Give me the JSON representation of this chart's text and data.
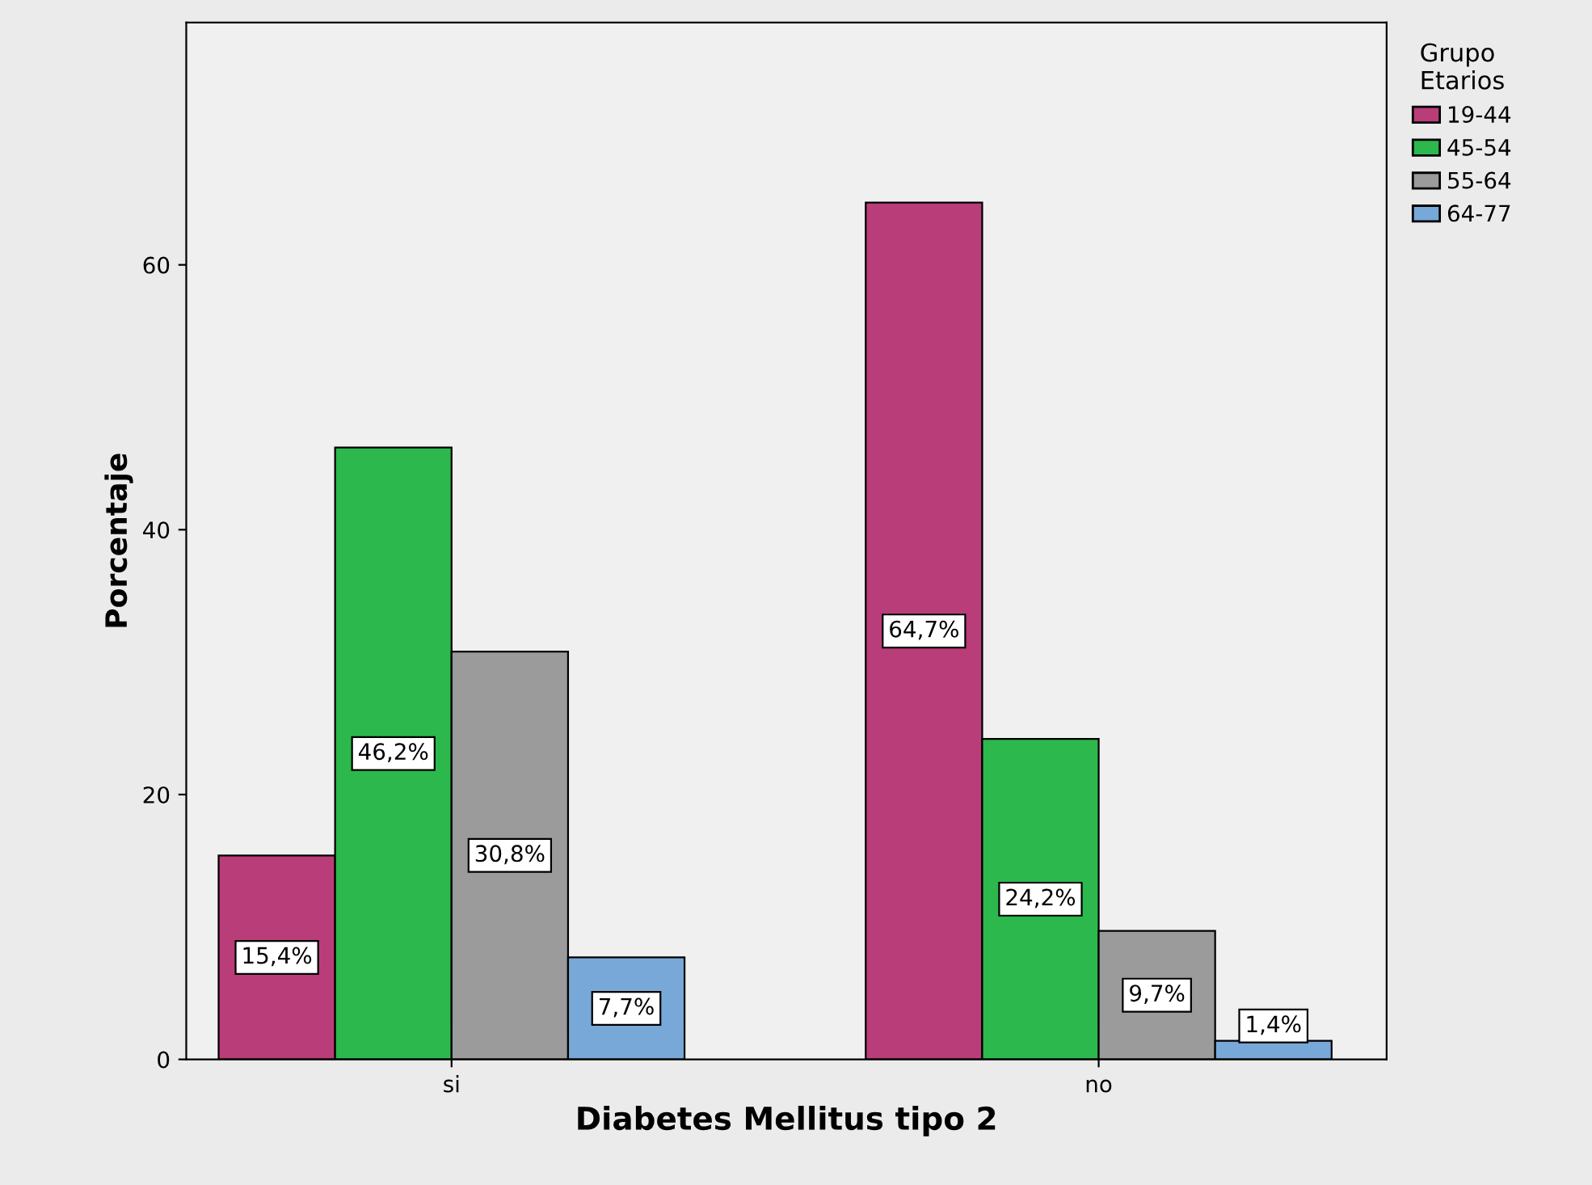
{
  "chart_data": {
    "type": "bar",
    "xlabel": "Diabetes Mellitus tipo 2",
    "ylabel": "Porcentaje",
    "legend_title": "Grupo\nEtarios",
    "categories": [
      "si",
      "no"
    ],
    "series": [
      {
        "name": "19-44",
        "color": "#b93d78",
        "values": [
          15.4,
          64.7
        ],
        "value_labels": [
          "15,4%",
          "64,7%"
        ]
      },
      {
        "name": "45-54",
        "color": "#2db84d",
        "values": [
          46.2,
          24.2
        ],
        "value_labels": [
          "46,2%",
          "24,2%"
        ]
      },
      {
        "name": "55-64",
        "color": "#9b9b9b",
        "values": [
          30.8,
          9.7
        ],
        "value_labels": [
          "30,8%",
          "9,7%"
        ]
      },
      {
        "name": "64-77",
        "color": "#78a8d8",
        "values": [
          7.7,
          1.4
        ],
        "value_labels": [
          "7,7%",
          "1,4%"
        ]
      }
    ],
    "ylim": [
      0,
      78.3
    ],
    "yticks": [
      0,
      20,
      40,
      60
    ],
    "grid": false,
    "legend": "top right"
  }
}
